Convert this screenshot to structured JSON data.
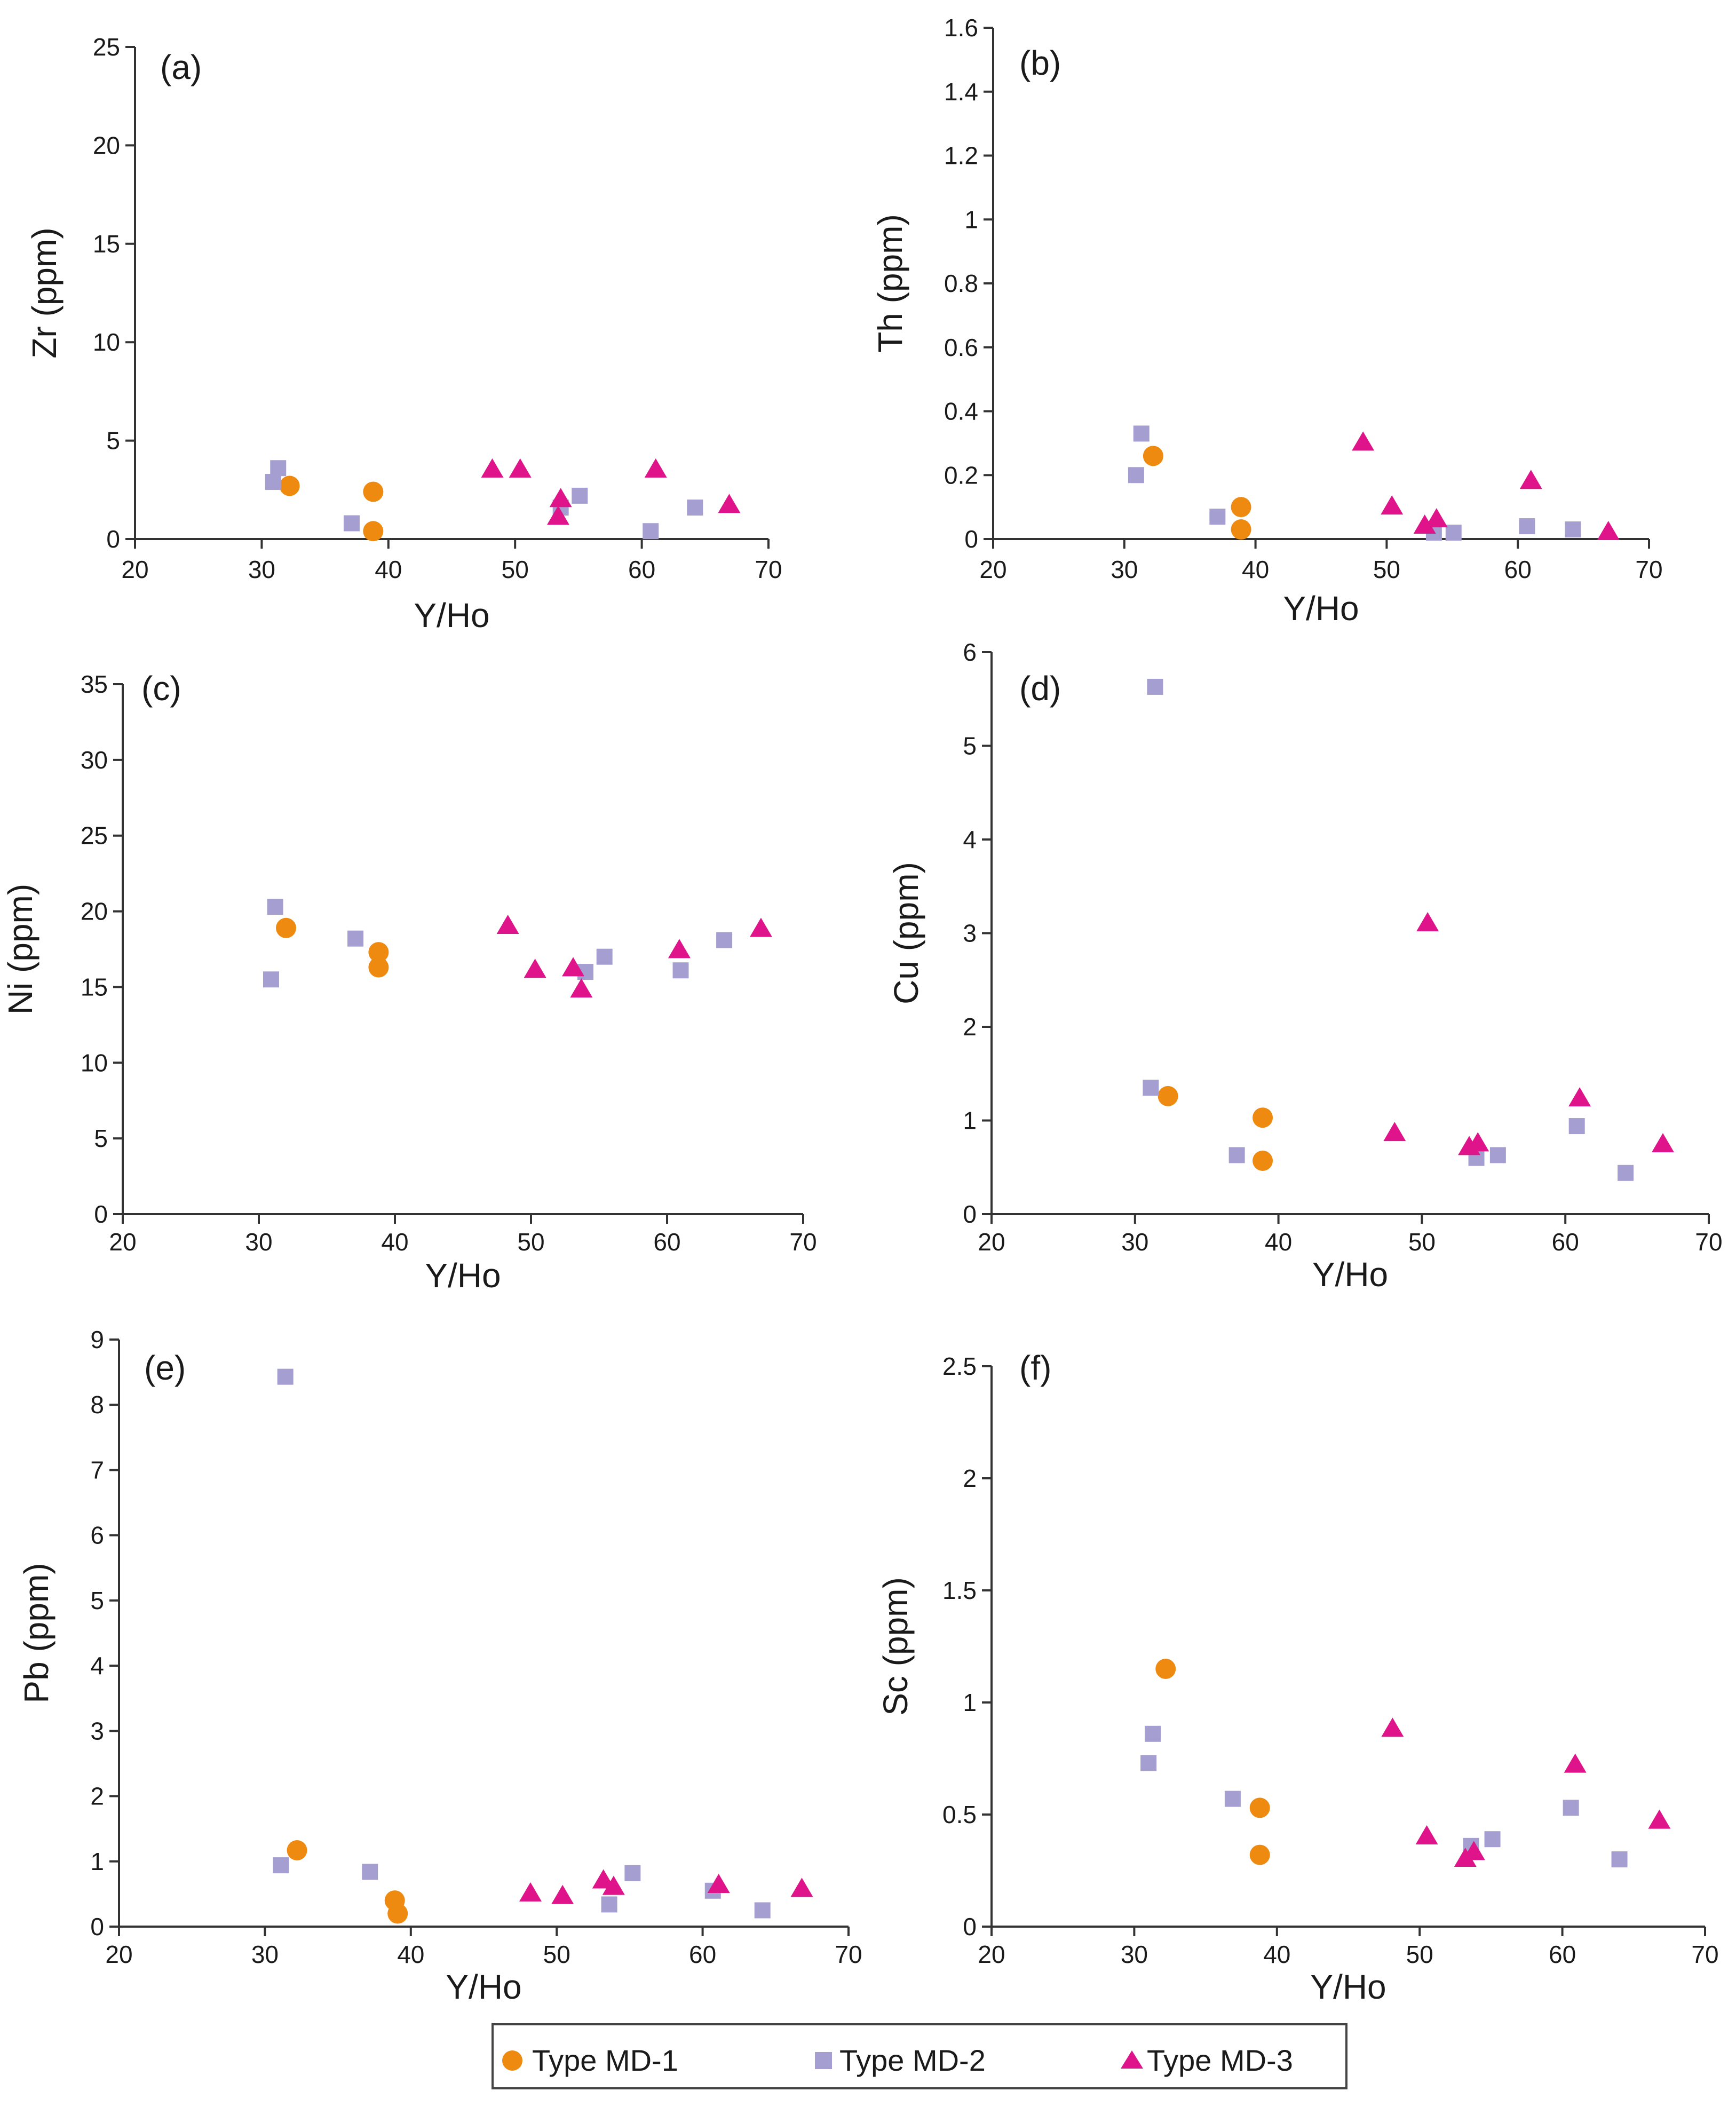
{
  "colors": {
    "MD-1": "#ef8a10",
    "MD-2": "#a49fd0",
    "MD-3": "#e0148a",
    "axis": "#333333"
  },
  "legend": [
    {
      "series": "MD-1",
      "label": "Type MD-1",
      "marker": "circle"
    },
    {
      "series": "MD-2",
      "label": "Type MD-2",
      "marker": "square"
    },
    {
      "series": "MD-3",
      "label": "Type MD-3",
      "marker": "triangle"
    }
  ],
  "chart_data": [
    {
      "type": "scatter",
      "panel": "(a)",
      "xlabel": "Y/Ho",
      "ylabel": "Zr (ppm)",
      "xlim": [
        20,
        70
      ],
      "ylim": [
        0,
        25
      ],
      "xticks": [
        20,
        30,
        40,
        50,
        60,
        70
      ],
      "yticks": [
        0,
        5,
        10,
        15,
        20,
        25
      ],
      "series": [
        {
          "name": "MD-1",
          "points": [
            [
              32.2,
              2.7
            ],
            [
              38.8,
              2.4
            ],
            [
              38.8,
              0.4
            ]
          ]
        },
        {
          "name": "MD-2",
          "points": [
            [
              30.9,
              2.9
            ],
            [
              31.3,
              3.6
            ],
            [
              37.1,
              0.8
            ],
            [
              53.6,
              1.6
            ],
            [
              55.1,
              2.2
            ],
            [
              60.7,
              0.4
            ],
            [
              64.2,
              1.6
            ]
          ]
        },
        {
          "name": "MD-3",
          "points": [
            [
              48.2,
              3.5
            ],
            [
              50.4,
              3.5
            ],
            [
              53.4,
              1.1
            ],
            [
              53.6,
              2.0
            ],
            [
              61.1,
              3.5
            ],
            [
              66.9,
              1.7
            ]
          ]
        }
      ]
    },
    {
      "type": "scatter",
      "panel": "(b)",
      "xlabel": "Y/Ho",
      "ylabel": "Th (ppm)",
      "xlim": [
        20,
        70
      ],
      "ylim": [
        0,
        1.6
      ],
      "xticks": [
        20,
        30,
        40,
        50,
        60,
        70
      ],
      "yticks": [
        0,
        0.2,
        0.4,
        0.6,
        0.8,
        1,
        1.2,
        1.4,
        1.6
      ],
      "series": [
        {
          "name": "MD-1",
          "points": [
            [
              32.2,
              0.26
            ],
            [
              38.9,
              0.1
            ],
            [
              38.9,
              0.03
            ]
          ]
        },
        {
          "name": "MD-2",
          "points": [
            [
              30.9,
              0.2
            ],
            [
              31.3,
              0.33
            ],
            [
              37.1,
              0.07
            ],
            [
              53.6,
              0.02
            ],
            [
              55.1,
              0.02
            ],
            [
              60.7,
              0.04
            ],
            [
              64.2,
              0.03
            ]
          ]
        },
        {
          "name": "MD-3",
          "points": [
            [
              48.2,
              0.3
            ],
            [
              50.4,
              0.1
            ],
            [
              52.9,
              0.04
            ],
            [
              53.8,
              0.06
            ],
            [
              61.0,
              0.18
            ],
            [
              66.9,
              0.02
            ]
          ]
        }
      ]
    },
    {
      "type": "scatter",
      "panel": "(c)",
      "xlabel": "Y/Ho",
      "ylabel": "Ni (ppm)",
      "xlim": [
        20,
        70
      ],
      "ylim": [
        0,
        35
      ],
      "xticks": [
        20,
        30,
        40,
        50,
        60,
        70
      ],
      "yticks": [
        0,
        5,
        10,
        15,
        20,
        25,
        30,
        35
      ],
      "series": [
        {
          "name": "MD-1",
          "points": [
            [
              32.0,
              18.9
            ],
            [
              38.8,
              17.3
            ],
            [
              38.8,
              16.3
            ]
          ]
        },
        {
          "name": "MD-2",
          "points": [
            [
              30.9,
              15.5
            ],
            [
              31.2,
              20.3
            ],
            [
              37.1,
              18.2
            ],
            [
              54.0,
              16.0
            ],
            [
              55.4,
              17.0
            ],
            [
              61.0,
              16.1
            ],
            [
              64.2,
              18.1
            ]
          ]
        },
        {
          "name": "MD-3",
          "points": [
            [
              48.3,
              19.0
            ],
            [
              50.3,
              16.1
            ],
            [
              53.1,
              16.2
            ],
            [
              53.7,
              14.8
            ],
            [
              60.9,
              17.4
            ],
            [
              66.9,
              18.8
            ]
          ]
        }
      ]
    },
    {
      "type": "scatter",
      "panel": "(d)",
      "xlabel": "Y/Ho",
      "ylabel": "Cu (ppm)",
      "xlim": [
        20,
        70
      ],
      "ylim": [
        0,
        6
      ],
      "xticks": [
        20,
        30,
        40,
        50,
        60,
        70
      ],
      "yticks": [
        0,
        1,
        2,
        3,
        4,
        5,
        6
      ],
      "series": [
        {
          "name": "MD-1",
          "points": [
            [
              32.3,
              1.26
            ],
            [
              38.9,
              1.03
            ],
            [
              38.9,
              0.57
            ]
          ]
        },
        {
          "name": "MD-2",
          "points": [
            [
              31.1,
              1.35
            ],
            [
              31.4,
              5.63
            ],
            [
              37.1,
              0.63
            ],
            [
              53.8,
              0.6
            ],
            [
              55.3,
              0.63
            ],
            [
              60.8,
              0.94
            ],
            [
              64.2,
              0.44
            ]
          ]
        },
        {
          "name": "MD-3",
          "points": [
            [
              48.1,
              0.86
            ],
            [
              50.4,
              3.1
            ],
            [
              53.3,
              0.71
            ],
            [
              53.9,
              0.75
            ],
            [
              61.0,
              1.23
            ],
            [
              66.8,
              0.74
            ]
          ]
        }
      ]
    },
    {
      "type": "scatter",
      "panel": "(e)",
      "xlabel": "Y/Ho",
      "ylabel": "Pb (ppm)",
      "xlim": [
        20,
        70
      ],
      "ylim": [
        0,
        9
      ],
      "xticks": [
        20,
        30,
        40,
        50,
        60,
        70
      ],
      "yticks": [
        0,
        1,
        2,
        3,
        4,
        5,
        6,
        7,
        8,
        9
      ],
      "series": [
        {
          "name": "MD-1",
          "points": [
            [
              32.2,
              1.17
            ],
            [
              38.9,
              0.4
            ],
            [
              39.1,
              0.2
            ]
          ]
        },
        {
          "name": "MD-2",
          "points": [
            [
              31.1,
              0.94
            ],
            [
              31.4,
              8.43
            ],
            [
              37.2,
              0.84
            ],
            [
              53.6,
              0.34
            ],
            [
              55.2,
              0.82
            ],
            [
              60.7,
              0.55
            ],
            [
              64.1,
              0.25
            ]
          ]
        },
        {
          "name": "MD-3",
          "points": [
            [
              48.2,
              0.5
            ],
            [
              50.4,
              0.46
            ],
            [
              53.2,
              0.7
            ],
            [
              53.9,
              0.6
            ],
            [
              61.1,
              0.63
            ],
            [
              66.8,
              0.57
            ]
          ]
        }
      ]
    },
    {
      "type": "scatter",
      "panel": "(f)",
      "xlabel": "Y/Ho",
      "ylabel": "Sc (ppm)",
      "xlim": [
        20,
        70
      ],
      "ylim": [
        0,
        2.5
      ],
      "xticks": [
        20,
        30,
        40,
        50,
        60,
        70
      ],
      "yticks": [
        0,
        0.5,
        1,
        1.5,
        2,
        2.5
      ],
      "series": [
        {
          "name": "MD-1",
          "points": [
            [
              32.2,
              1.15
            ],
            [
              38.8,
              0.53
            ],
            [
              38.8,
              0.32
            ]
          ]
        },
        {
          "name": "MD-2",
          "points": [
            [
              31.0,
              0.73
            ],
            [
              31.3,
              0.86
            ],
            [
              36.9,
              0.57
            ],
            [
              53.6,
              0.36
            ],
            [
              55.1,
              0.39
            ],
            [
              60.6,
              0.53
            ],
            [
              64.0,
              0.3
            ]
          ]
        },
        {
          "name": "MD-3",
          "points": [
            [
              48.1,
              0.88
            ],
            [
              50.5,
              0.4
            ],
            [
              53.2,
              0.3
            ],
            [
              53.8,
              0.33
            ],
            [
              60.9,
              0.72
            ],
            [
              66.8,
              0.47
            ]
          ]
        }
      ]
    }
  ]
}
